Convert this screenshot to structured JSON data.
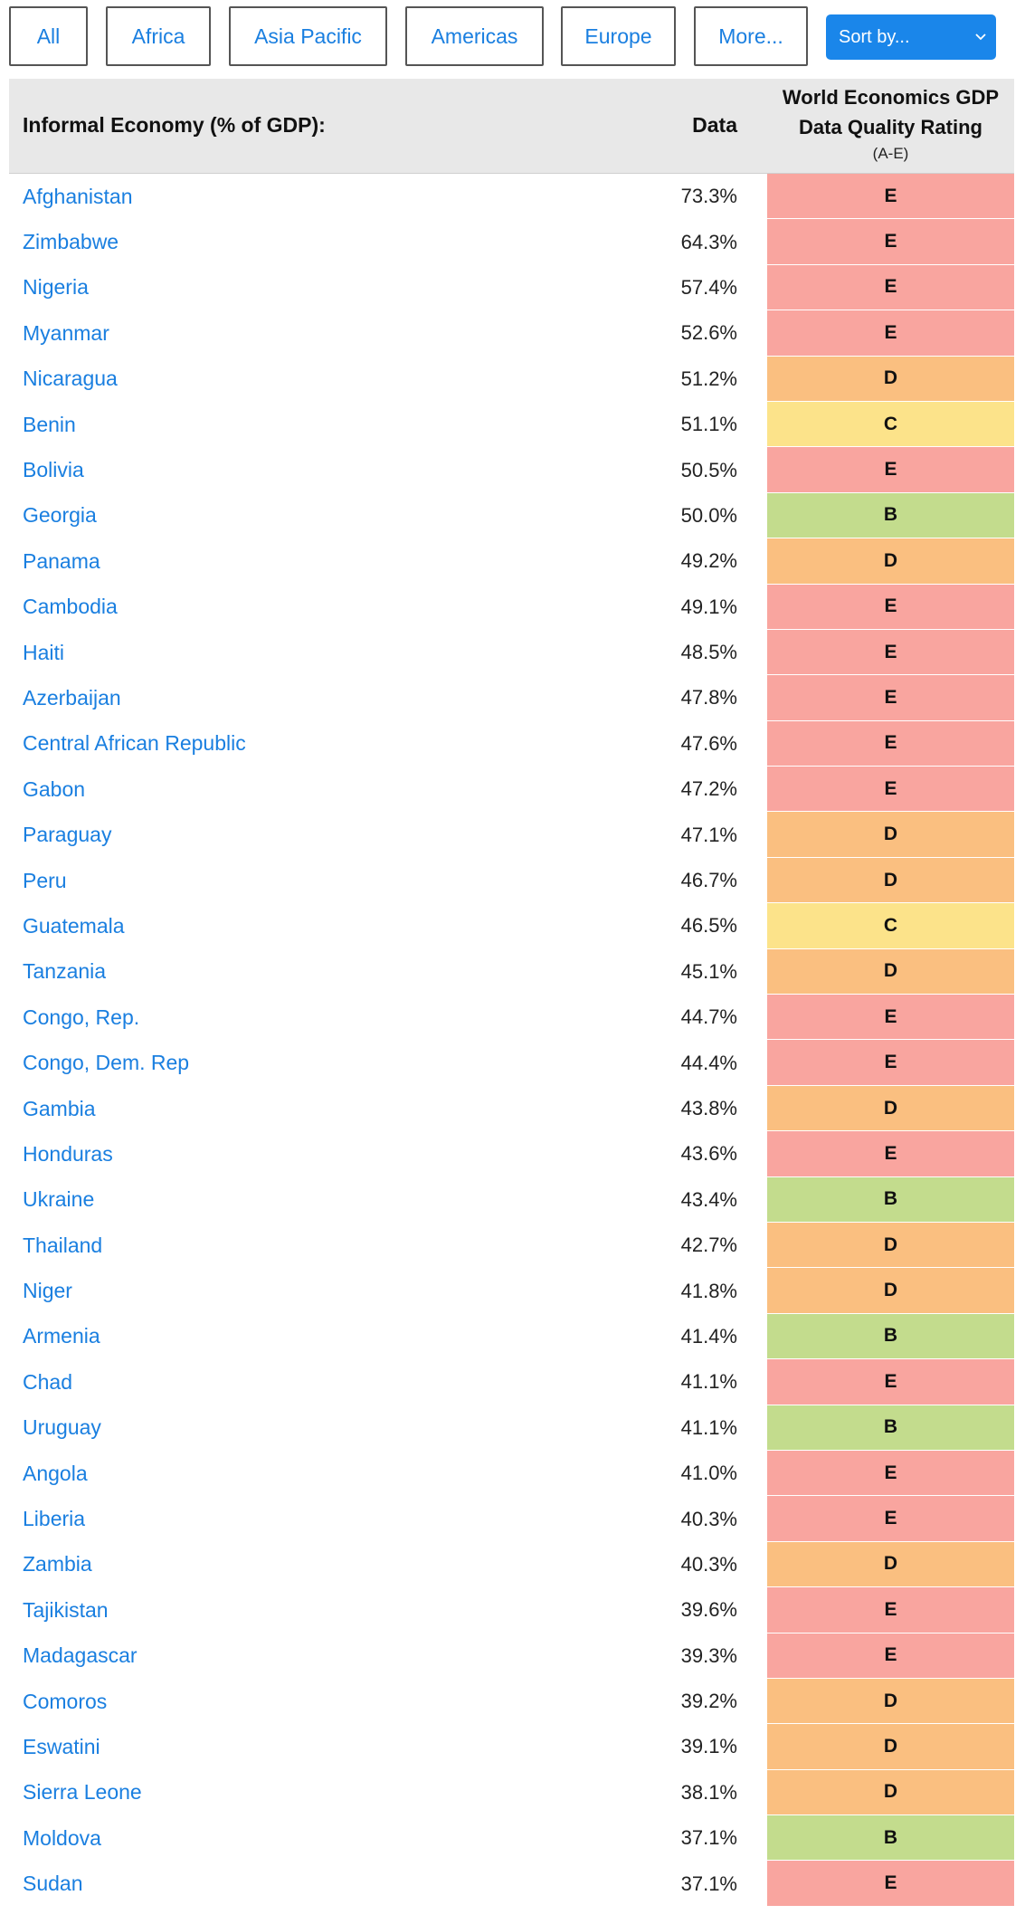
{
  "filters": {
    "all": "All",
    "africa": "Africa",
    "asia_pacific": "Asia Pacific",
    "americas": "Americas",
    "europe": "Europe",
    "more": "More..."
  },
  "sort": {
    "label": "Sort by...",
    "icon": "chevron-down-icon"
  },
  "table": {
    "header": {
      "country": "Informal Economy (% of GDP):",
      "data": "Data",
      "rating_title": "World Economics GDP Data Quality Rating",
      "rating_sub": "(A-E)"
    },
    "rating_colors": {
      "B": "#c3dc8d",
      "C": "#fce38a",
      "D": "#fabf80",
      "E": "#f9a59f"
    },
    "rows": [
      {
        "country": "Afghanistan",
        "value": "73.3%",
        "rating": "E"
      },
      {
        "country": "Zimbabwe",
        "value": "64.3%",
        "rating": "E"
      },
      {
        "country": "Nigeria",
        "value": "57.4%",
        "rating": "E"
      },
      {
        "country": "Myanmar",
        "value": "52.6%",
        "rating": "E"
      },
      {
        "country": "Nicaragua",
        "value": "51.2%",
        "rating": "D"
      },
      {
        "country": "Benin",
        "value": "51.1%",
        "rating": "C"
      },
      {
        "country": "Bolivia",
        "value": "50.5%",
        "rating": "E"
      },
      {
        "country": "Georgia",
        "value": "50.0%",
        "rating": "B"
      },
      {
        "country": "Panama",
        "value": "49.2%",
        "rating": "D"
      },
      {
        "country": "Cambodia",
        "value": "49.1%",
        "rating": "E"
      },
      {
        "country": "Haiti",
        "value": "48.5%",
        "rating": "E"
      },
      {
        "country": "Azerbaijan",
        "value": "47.8%",
        "rating": "E"
      },
      {
        "country": "Central African Republic",
        "value": "47.6%",
        "rating": "E"
      },
      {
        "country": "Gabon",
        "value": "47.2%",
        "rating": "E"
      },
      {
        "country": "Paraguay",
        "value": "47.1%",
        "rating": "D"
      },
      {
        "country": "Peru",
        "value": "46.7%",
        "rating": "D"
      },
      {
        "country": "Guatemala",
        "value": "46.5%",
        "rating": "C"
      },
      {
        "country": "Tanzania",
        "value": "45.1%",
        "rating": "D"
      },
      {
        "country": "Congo, Rep.",
        "value": "44.7%",
        "rating": "E"
      },
      {
        "country": "Congo, Dem. Rep",
        "value": "44.4%",
        "rating": "E"
      },
      {
        "country": "Gambia",
        "value": "43.8%",
        "rating": "D"
      },
      {
        "country": "Honduras",
        "value": "43.6%",
        "rating": "E"
      },
      {
        "country": "Ukraine",
        "value": "43.4%",
        "rating": "B"
      },
      {
        "country": "Thailand",
        "value": "42.7%",
        "rating": "D"
      },
      {
        "country": "Niger",
        "value": "41.8%",
        "rating": "D"
      },
      {
        "country": "Armenia",
        "value": "41.4%",
        "rating": "B"
      },
      {
        "country": "Chad",
        "value": "41.1%",
        "rating": "E"
      },
      {
        "country": "Uruguay",
        "value": "41.1%",
        "rating": "B"
      },
      {
        "country": "Angola",
        "value": "41.0%",
        "rating": "E"
      },
      {
        "country": "Liberia",
        "value": "40.3%",
        "rating": "E"
      },
      {
        "country": "Zambia",
        "value": "40.3%",
        "rating": "D"
      },
      {
        "country": "Tajikistan",
        "value": "39.6%",
        "rating": "E"
      },
      {
        "country": "Madagascar",
        "value": "39.3%",
        "rating": "E"
      },
      {
        "country": "Comoros",
        "value": "39.2%",
        "rating": "D"
      },
      {
        "country": "Eswatini",
        "value": "39.1%",
        "rating": "D"
      },
      {
        "country": "Sierra Leone",
        "value": "38.1%",
        "rating": "D"
      },
      {
        "country": "Moldova",
        "value": "37.1%",
        "rating": "B"
      },
      {
        "country": "Sudan",
        "value": "37.1%",
        "rating": "E"
      }
    ]
  }
}
